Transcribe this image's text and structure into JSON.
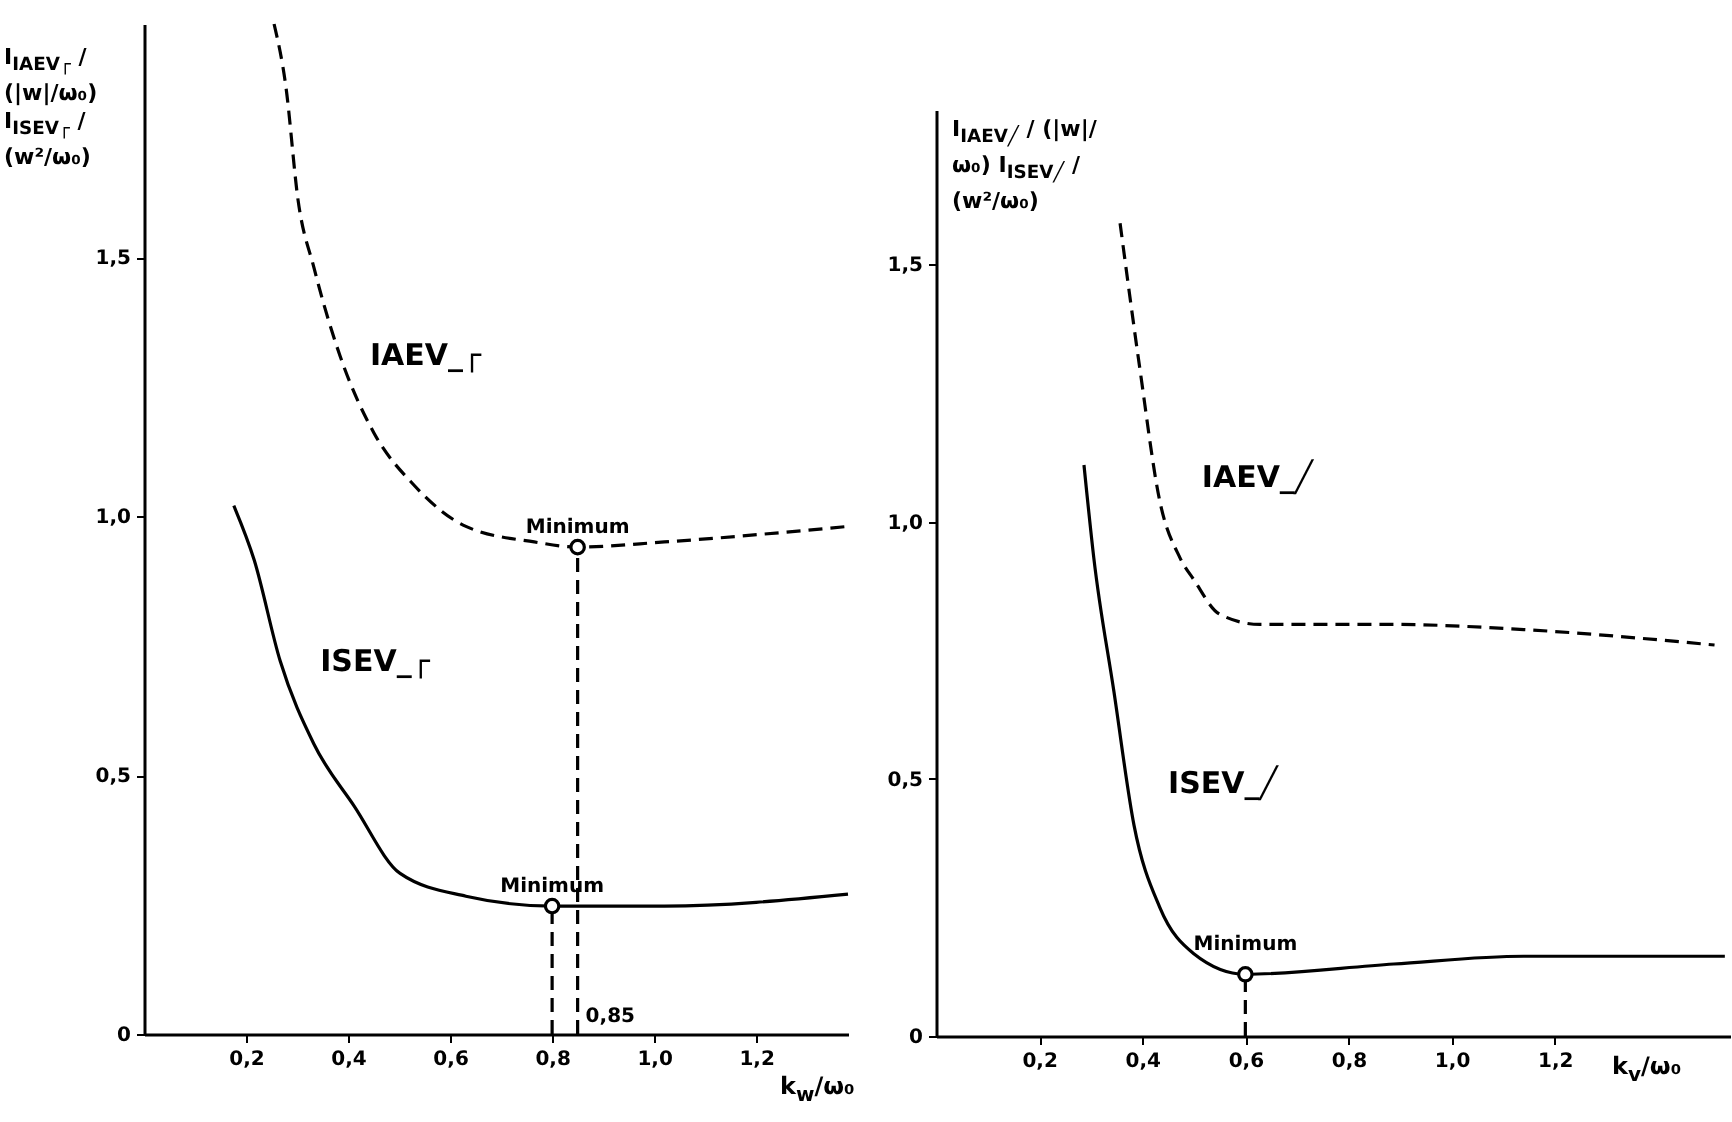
{
  "chart_data": [
    {
      "type": "line",
      "ylabel": "I$_{IAEV┌}$ / (|w|/ω₀)   I$_{ISEV┌}$ / (w²/ω₀)",
      "xlabel": "k$_{w}$/ω₀",
      "xlim": [
        0,
        1.38
      ],
      "ylim": [
        0,
        1.95
      ],
      "xticks": [
        {
          "value": 0.2,
          "label": "0,2"
        },
        {
          "value": 0.4,
          "label": "0,4"
        },
        {
          "value": 0.6,
          "label": "0,6"
        },
        {
          "value": 0.8,
          "label": "0,8"
        },
        {
          "value": 1.0,
          "label": "1,0"
        },
        {
          "value": 1.2,
          "label": "1,2"
        }
      ],
      "yticks": [
        0,
        {
          "value": 0.5,
          "label": "0,5"
        },
        {
          "value": 1.0,
          "label": "1,0"
        },
        {
          "value": 1.5,
          "label": "1,5"
        }
      ],
      "grid": false,
      "series": [
        {
          "name": "IAEV_┌",
          "line_style": "dashed",
          "color": "#000000",
          "x": [
            0.255,
            0.278,
            0.302,
            0.333,
            0.384,
            0.451,
            0.529,
            0.631,
            0.765,
            0.85,
            1.02,
            1.38
          ],
          "values": [
            1.95,
            1.83,
            1.61,
            1.48,
            1.31,
            1.16,
            1.06,
            0.98,
            0.95,
            0.94,
            0.95,
            0.98
          ]
        },
        {
          "name": "ISEV_┌",
          "line_style": "solid",
          "color": "#000000",
          "x": [
            0.176,
            0.216,
            0.267,
            0.333,
            0.412,
            0.502,
            0.631,
            0.8,
            1.02,
            1.38
          ],
          "values": [
            1.02,
            0.915,
            0.72,
            0.56,
            0.44,
            0.31,
            0.266,
            0.247,
            0.247,
            0.27
          ]
        },
        {
          "line_style": "dashed",
          "color": "#000000",
          "x": [
            0.85,
            0.85
          ],
          "values": [
            0,
            0.94
          ]
        },
        {
          "line_style": "dashed",
          "color": "#000000",
          "x": [
            0.8,
            0.8
          ],
          "values": [
            0,
            0.247
          ]
        },
        {
          "type": "scatter",
          "marker": "circle",
          "color": "#000000",
          "x": [
            0.85,
            0.8
          ],
          "values": [
            0.94,
            0.247
          ]
        }
      ],
      "annotations": [
        {
          "text": "Minimum",
          "x": 0.85,
          "y": 0.94
        },
        {
          "text": "Minimum",
          "x": 0.8,
          "y": 0.247
        },
        {
          "text": "0,85",
          "x": 0.85,
          "y": 0
        }
      ]
    },
    {
      "type": "line",
      "ylabel": "I$_{IAEV╱}$ / (|w|/ω₀)   I$_{ISEV╱}$ / (w²/ω₀)",
      "xlabel": "k$_{v}$/ω₀",
      "xlim": [
        0,
        1.54
      ],
      "ylim": [
        0,
        1.8
      ],
      "xticks": [
        {
          "value": 0.2,
          "label": "0,2"
        },
        {
          "value": 0.4,
          "label": "0,4"
        },
        {
          "value": 0.6,
          "label": "0,6"
        },
        {
          "value": 0.8,
          "label": "0,8"
        },
        {
          "value": 1.0,
          "label": "1,0"
        },
        {
          "value": 1.2,
          "label": "1,2"
        }
      ],
      "yticks": [
        0,
        {
          "value": 0.5,
          "label": "0,5"
        },
        {
          "value": 1.0,
          "label": "1,0"
        },
        {
          "value": 1.5,
          "label": "1,5"
        }
      ],
      "grid": false,
      "series": [
        {
          "name": "IAEV_╱",
          "line_style": "dashed",
          "color": "#000000",
          "x": [
            0.357,
            0.395,
            0.434,
            0.473,
            0.5,
            0.55,
            0.628,
            0.888,
            1.14,
            1.51
          ],
          "values": [
            1.58,
            1.3,
            1.04,
            0.93,
            0.887,
            0.82,
            0.8,
            0.8,
            0.79,
            0.76
          ]
        },
        {
          "name": "ISEV_╱",
          "line_style": "solid",
          "color": "#000000",
          "x": [
            0.287,
            0.306,
            0.345,
            0.384,
            0.434,
            0.5,
            0.6,
            0.888,
            1.14,
            1.53
          ],
          "values": [
            1.11,
            0.93,
            0.67,
            0.41,
            0.25,
            0.16,
            0.12,
            0.14,
            0.155,
            0.155
          ]
        },
        {
          "line_style": "dashed",
          "color": "#000000",
          "x": [
            0.6,
            0.6
          ],
          "values": [
            0,
            0.12
          ]
        },
        {
          "type": "scatter",
          "marker": "circle",
          "color": "#000000",
          "x": [
            0.6
          ],
          "values": [
            0.12
          ]
        }
      ],
      "annotations": [
        {
          "text": "Minimum",
          "x": 0.6,
          "y": 0.12
        }
      ]
    }
  ]
}
